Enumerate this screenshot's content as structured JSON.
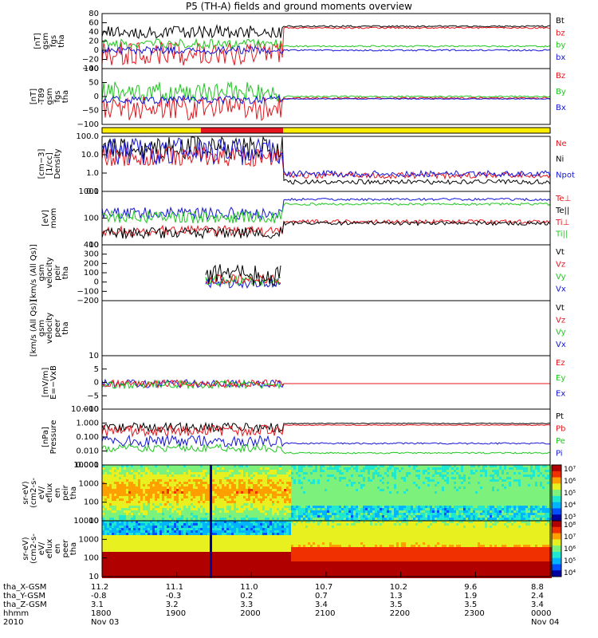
{
  "title": "P5 (TH-A) fields and ground moments overview",
  "orbit": {
    "rows": [
      {
        "label": "tha_X-GSM",
        "values": [
          "11.2",
          "11.1",
          "11.0",
          "10.7",
          "10.2",
          "9.6",
          "8.8"
        ]
      },
      {
        "label": "tha_Y-GSM",
        "values": [
          "-0.8",
          "-0.3",
          "0.2",
          "0.7",
          "1.3",
          "1.9",
          "2.4"
        ]
      },
      {
        "label": "tha_Z-GSM",
        "values": [
          "3.1",
          "3.2",
          "3.3",
          "3.4",
          "3.5",
          "3.5",
          "3.4"
        ]
      },
      {
        "label": "hhmm",
        "values": [
          "1800",
          "1900",
          "2000",
          "2100",
          "2200",
          "2300",
          "0000"
        ]
      },
      {
        "label": "2010",
        "values": [
          "Nov 03",
          "",
          "",
          "",
          "",
          "",
          "Nov 04"
        ]
      }
    ]
  },
  "colors": {
    "black": "#000000",
    "red": "#e8141c",
    "green": "#1ec81e",
    "blue": "#1414dc",
    "yellow": "#ffee00"
  },
  "chart_data": [
    {
      "type": "line",
      "ylabel": "tha\nfgs\ngsm\n[nT]",
      "ylim": [
        -40,
        80
      ],
      "ticks": [
        "80",
        "60",
        "40",
        "20",
        "0",
        "−20",
        "−40"
      ],
      "series": [
        {
          "name": "Bt",
          "color": "black"
        },
        {
          "name": "bz",
          "color": "red"
        },
        {
          "name": "by",
          "color": "green"
        },
        {
          "name": "bx",
          "color": "blue"
        }
      ]
    },
    {
      "type": "line",
      "ylabel": "tha\nfgs\ngsm\n-T89\n[nT]",
      "ylim": [
        -120,
        100
      ],
      "ticks": [
        "100",
        "50",
        "0",
        "−50",
        "−100"
      ],
      "series": [
        {
          "name": "Bz",
          "color": "red"
        },
        {
          "name": "By",
          "color": "green"
        },
        {
          "name": "Bx",
          "color": "blue"
        }
      ]
    },
    {
      "type": "line",
      "ylabel": "Density\n[1/cc]\n[cm−3]",
      "ylim": [
        0.1,
        100
      ],
      "log": true,
      "ticks": [
        "100.0",
        "10.0",
        "1.0",
        "0.1"
      ],
      "series": [
        {
          "name": "Ne",
          "color": "red"
        },
        {
          "name": "Ni",
          "color": "black"
        },
        {
          "name": "Npot",
          "color": "blue"
        }
      ]
    },
    {
      "type": "line",
      "ylabel": "mom\n[eV]",
      "ylim": [
        10,
        10000
      ],
      "log": true,
      "ticks": [
        "1000",
        "100",
        "10"
      ],
      "series": [
        {
          "name": "Te⊥",
          "color": "red"
        },
        {
          "name": "Te||",
          "color": "black"
        },
        {
          "name": "Ti⊥",
          "color": "red"
        },
        {
          "name": "Ti||",
          "color": "green"
        }
      ]
    },
    {
      "type": "line",
      "ylabel": "tha\npeir\nvelocity\ngsm\n[km/s (All Qs)]",
      "ylim": [
        -200,
        400
      ],
      "ticks": [
        "400",
        "300",
        "200",
        "100",
        "0",
        "−100",
        "−200"
      ],
      "series": [
        {
          "name": "Vt",
          "color": "black"
        },
        {
          "name": "Vz",
          "color": "red"
        },
        {
          "name": "Vy",
          "color": "green"
        },
        {
          "name": "Vx",
          "color": "blue"
        }
      ]
    },
    {
      "type": "line",
      "ylabel": "tha\npeer\nvelocity\ngsm\n[km/s (All Qs)]",
      "ylim": [
        0,
        1
      ],
      "ticks": [],
      "series": [
        {
          "name": "Vt",
          "color": "black"
        },
        {
          "name": "Vz",
          "color": "red"
        },
        {
          "name": "Vy",
          "color": "green"
        },
        {
          "name": "Vx",
          "color": "blue"
        }
      ]
    },
    {
      "type": "line",
      "ylabel": "E=−VxB\n[mV/m]",
      "ylim": [
        -10,
        10
      ],
      "ticks": [
        "10",
        "5",
        "0",
        "−5",
        "−10"
      ],
      "series": [
        {
          "name": "Ez",
          "color": "red"
        },
        {
          "name": "Ey",
          "color": "green"
        },
        {
          "name": "Ex",
          "color": "blue"
        }
      ]
    },
    {
      "type": "line",
      "ylabel": "Pressure\n[nPa]",
      "ylim": [
        0.001,
        10
      ],
      "log": true,
      "ticks": [
        "10.000",
        "1.000",
        "0.100",
        "0.010",
        "0.001"
      ],
      "series": [
        {
          "name": "Pt",
          "color": "black"
        },
        {
          "name": "Pb",
          "color": "red"
        },
        {
          "name": "Pe",
          "color": "green"
        },
        {
          "name": "Pi",
          "color": "blue"
        }
      ]
    },
    {
      "type": "heatmap",
      "ylabel": "tha\npeir\nen\neflux\neV/\n(cm2-s-\nsr-eV)",
      "ylim": [
        10,
        10000
      ],
      "log": true,
      "ticks": [
        "10000",
        "1000",
        "100",
        "10"
      ],
      "colorbar": [
        "10⁷",
        "10⁶",
        "10⁵",
        "10⁴",
        "10³"
      ]
    },
    {
      "type": "heatmap",
      "ylabel": "tha\npeer\nen\neflux\neV/\n(cm2-s-\nsr-eV)",
      "ylim": [
        10,
        10000
      ],
      "log": true,
      "ticks": [
        "10000",
        "1000",
        "100",
        "10"
      ],
      "colorbar": [
        "10⁸",
        "10⁷",
        "10⁶",
        "10⁵",
        "10⁴"
      ]
    }
  ],
  "xaxis": {
    "ticks": [
      "1800",
      "1900",
      "2000",
      "2100",
      "2200",
      "2300",
      "0000"
    ]
  }
}
